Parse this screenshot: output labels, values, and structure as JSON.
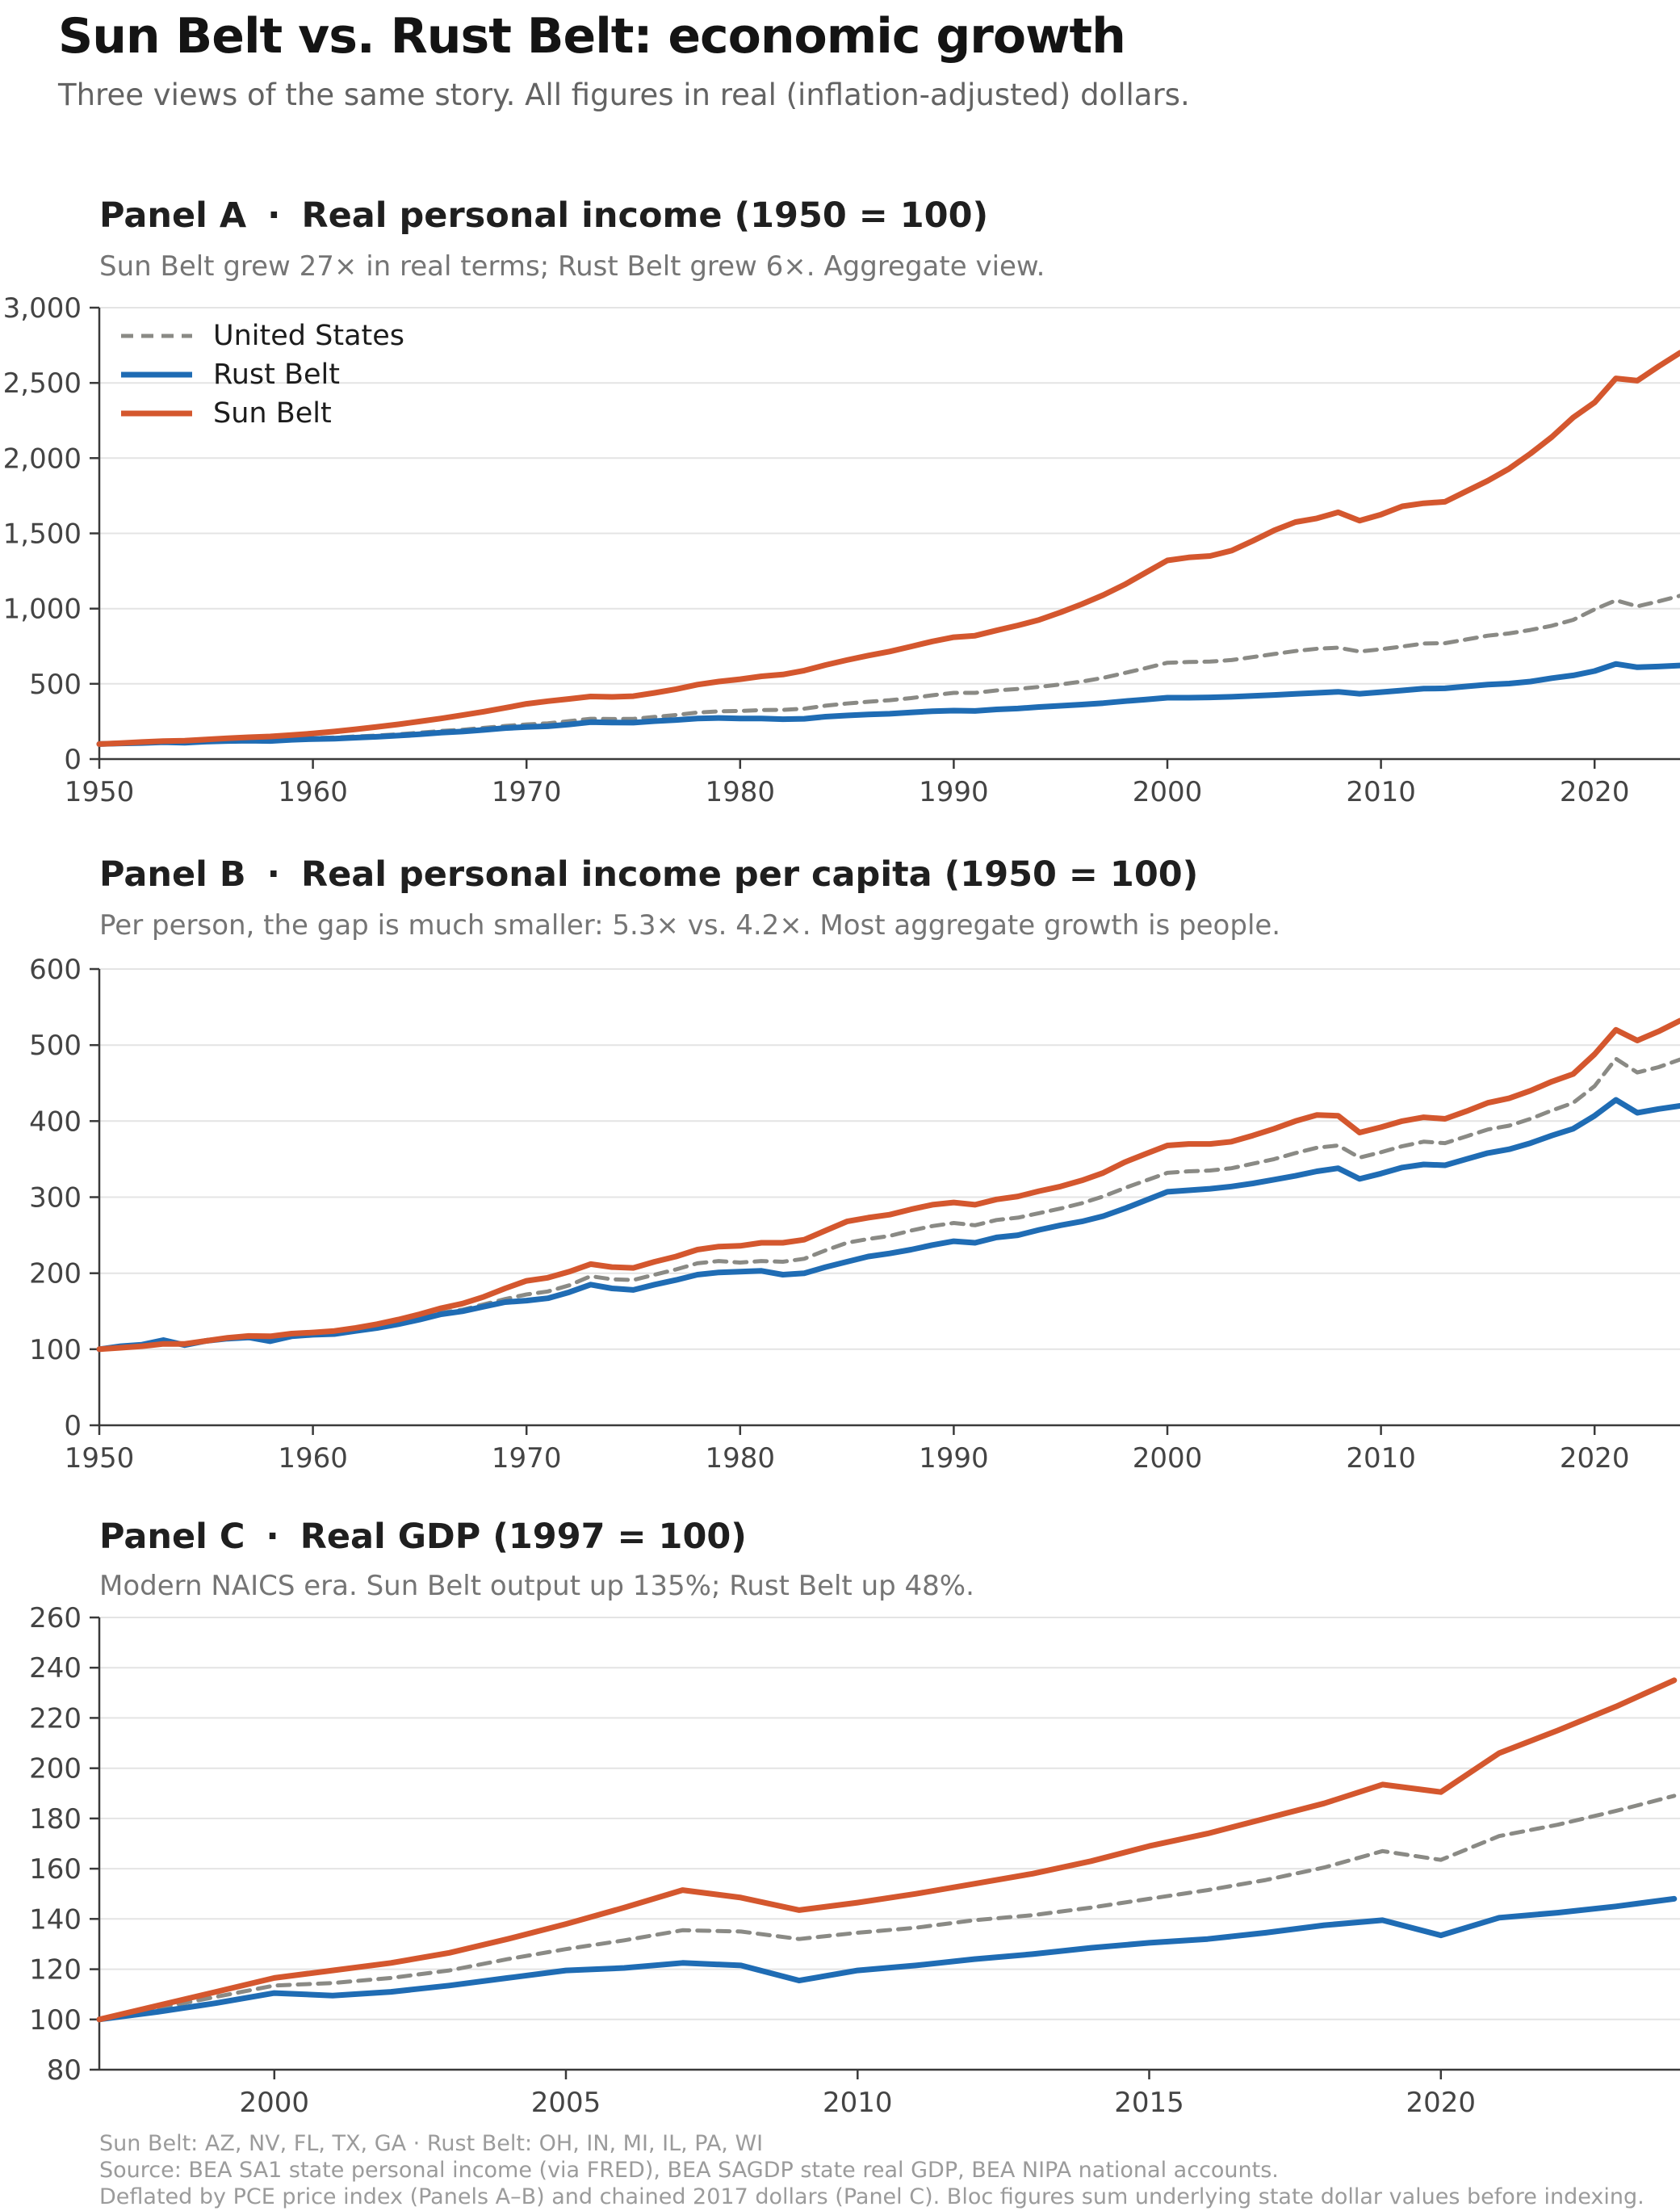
{
  "header": {
    "title": "Sun Belt vs. Rust Belt: economic growth",
    "subtitle": "Three views of the same story. All figures in real (inflation-adjusted) dollars."
  },
  "colors": {
    "sun": "#d4572e",
    "rust": "#1f6cb4",
    "us": "#8a8a85",
    "grid": "#e4e4e4",
    "spine": "#3a3a3a",
    "tick_label": "#444444",
    "title": "#141414",
    "subtitle": "#636363",
    "panel_subtitle": "#757575",
    "footer": "#9b9b9b"
  },
  "legend": {
    "items": [
      "United States",
      "Rust Belt",
      "Sun Belt"
    ]
  },
  "footer": {
    "lines": [
      "Sun Belt: AZ, NV, FL, TX, GA  ·  Rust Belt: OH, IN, MI, IL, PA, WI",
      "Source: BEA SA1 state personal income (via FRED), BEA SAGDP state real GDP, BEA NIPA national accounts.",
      "Deflated by PCE price index (Panels A–B) and chained 2017 dollars (Panel C). Bloc figures sum underlying state dollar values before indexing."
    ]
  },
  "chart_data": [
    {
      "id": "a",
      "type": "line",
      "title_prefix": "Panel A",
      "separator": "·",
      "title": "Real personal income (1950 = 100)",
      "subtitle": "Sun Belt grew 27× in real terms; Rust Belt grew 6×. Aggregate view.",
      "x_start": 1950,
      "x_end": 2024,
      "xlim": [
        1950,
        2024
      ],
      "ylim": [
        0,
        3000
      ],
      "grid": true,
      "legend_position": "upper-left",
      "xticks": [
        {
          "v": 1950,
          "label": "1950"
        },
        {
          "v": 1960,
          "label": "1960"
        },
        {
          "v": 1970,
          "label": "1970"
        },
        {
          "v": 1980,
          "label": "1980"
        },
        {
          "v": 1990,
          "label": "1990"
        },
        {
          "v": 2000,
          "label": "2000"
        },
        {
          "v": 2010,
          "label": "2010"
        },
        {
          "v": 2020,
          "label": "2020"
        }
      ],
      "yticks": [
        {
          "v": 0,
          "label": "0"
        },
        {
          "v": 500,
          "label": "500"
        },
        {
          "v": 1000,
          "label": "1,000"
        },
        {
          "v": 1500,
          "label": "1,500"
        },
        {
          "v": 2000,
          "label": "2,000"
        },
        {
          "v": 2500,
          "label": "2,500"
        },
        {
          "v": 3000,
          "label": "3,000"
        }
      ],
      "series": [
        {
          "name": "United States",
          "key": "us",
          "color_ref": "us",
          "dash": true,
          "width": 5,
          "values": [
            100,
            104,
            108,
            113,
            112,
            119,
            123,
            126,
            125,
            133,
            140,
            143,
            150,
            156,
            165,
            175,
            187,
            195,
            207,
            220,
            230,
            238,
            252,
            268,
            266,
            267,
            280,
            293,
            309,
            317,
            320,
            326,
            327,
            335,
            355,
            369,
            381,
            391,
            405,
            424,
            440,
            440,
            456,
            466,
            480,
            496,
            515,
            540,
            572,
            605,
            640,
            645,
            648,
            658,
            678,
            698,
            718,
            733,
            740,
            715,
            730,
            748,
            768,
            770,
            795,
            820,
            835,
            858,
            886,
            925,
            995,
            1055,
            1015,
            1048,
            1085
          ]
        },
        {
          "name": "Rust Belt",
          "key": "rust",
          "color_ref": "rust",
          "dash": false,
          "width": 7,
          "values": [
            100,
            104,
            107,
            112,
            109,
            116,
            120,
            122,
            120,
            128,
            133,
            136,
            142,
            148,
            156,
            165,
            176,
            183,
            194,
            206,
            213,
            218,
            230,
            245,
            243,
            242,
            252,
            260,
            270,
            273,
            270,
            270,
            265,
            268,
            282,
            290,
            296,
            301,
            310,
            318,
            322,
            320,
            330,
            336,
            346,
            354,
            362,
            372,
            385,
            396,
            408,
            408,
            410,
            414,
            420,
            426,
            433,
            440,
            447,
            434,
            445,
            456,
            468,
            470,
            483,
            495,
            502,
            515,
            538,
            556,
            585,
            632,
            610,
            615,
            622
          ]
        },
        {
          "name": "Sun Belt",
          "key": "sun",
          "color_ref": "sun",
          "dash": false,
          "width": 7,
          "values": [
            100,
            106,
            113,
            119,
            122,
            130,
            138,
            145,
            150,
            160,
            170,
            183,
            198,
            214,
            231,
            250,
            270,
            292,
            315,
            340,
            367,
            385,
            400,
            416,
            413,
            418,
            440,
            465,
            495,
            515,
            531,
            550,
            562,
            588,
            625,
            658,
            688,
            715,
            748,
            782,
            810,
            820,
            855,
            888,
            925,
            975,
            1030,
            1090,
            1160,
            1240,
            1320,
            1340,
            1350,
            1385,
            1450,
            1520,
            1575,
            1600,
            1640,
            1585,
            1625,
            1680,
            1700,
            1710,
            1780,
            1850,
            1930,
            2030,
            2140,
            2270,
            2370,
            2530,
            2515,
            2610,
            2700
          ]
        }
      ]
    },
    {
      "id": "b",
      "type": "line",
      "title_prefix": "Panel B",
      "separator": "·",
      "title": "Real personal income per capita (1950 = 100)",
      "subtitle": "Per person, the gap is much smaller: 5.3× vs. 4.2×. Most aggregate growth is people.",
      "x_start": 1950,
      "x_end": 2024,
      "xlim": [
        1950,
        2024
      ],
      "ylim": [
        0,
        600
      ],
      "grid": true,
      "xticks": [
        {
          "v": 1950,
          "label": "1950"
        },
        {
          "v": 1960,
          "label": "1960"
        },
        {
          "v": 1970,
          "label": "1970"
        },
        {
          "v": 1980,
          "label": "1980"
        },
        {
          "v": 1990,
          "label": "1990"
        },
        {
          "v": 2000,
          "label": "2000"
        },
        {
          "v": 2010,
          "label": "2010"
        },
        {
          "v": 2020,
          "label": "2020"
        }
      ],
      "yticks": [
        {
          "v": 0,
          "label": "0"
        },
        {
          "v": 100,
          "label": "100"
        },
        {
          "v": 200,
          "label": "200"
        },
        {
          "v": 300,
          "label": "300"
        },
        {
          "v": 400,
          "label": "400"
        },
        {
          "v": 500,
          "label": "500"
        },
        {
          "v": 600,
          "label": "600"
        }
      ],
      "series": [
        {
          "name": "United States",
          "key": "us",
          "color_ref": "us",
          "dash": true,
          "width": 5,
          "values": [
            100,
            103,
            105,
            109,
            107.5,
            112,
            114.5,
            116,
            114.5,
            119,
            120,
            121,
            125,
            129,
            135,
            141,
            148,
            152,
            159,
            166,
            172,
            176,
            184,
            196,
            192,
            191,
            198,
            205,
            213,
            216,
            214,
            216,
            215,
            219,
            230,
            240,
            245,
            249,
            256,
            262,
            266,
            263,
            270,
            273,
            279,
            285,
            292,
            301,
            312,
            322,
            332,
            334,
            335,
            338,
            344,
            350,
            358,
            365,
            368,
            352,
            359,
            367,
            373,
            371,
            380,
            389,
            394,
            403,
            414,
            424,
            446,
            482,
            464,
            471,
            481
          ]
        },
        {
          "name": "Rust Belt",
          "key": "rust",
          "color_ref": "rust",
          "dash": false,
          "width": 7,
          "values": [
            100,
            104,
            106,
            112,
            105.5,
            111,
            114,
            115.5,
            110.5,
            117,
            119,
            120,
            124,
            128,
            133,
            139,
            146,
            150,
            156,
            162,
            164,
            167,
            175,
            185,
            180,
            178,
            185,
            191,
            198,
            201,
            202,
            203,
            198,
            200,
            208,
            215,
            222,
            226,
            231,
            237,
            242,
            240,
            247,
            250,
            257,
            263,
            268,
            275,
            285,
            296,
            307,
            309,
            311,
            314,
            318,
            323,
            328,
            334,
            338,
            324,
            331,
            339,
            343,
            342,
            350,
            358,
            363,
            371,
            381,
            390,
            407,
            428,
            411,
            416,
            420
          ]
        },
        {
          "name": "Sun Belt",
          "key": "sun",
          "color_ref": "sun",
          "dash": false,
          "width": 7,
          "values": [
            100,
            102,
            104,
            107,
            107,
            111,
            115,
            117.5,
            117,
            120.5,
            122,
            124,
            128,
            133,
            139,
            146,
            154,
            160,
            169,
            180,
            190,
            194,
            202,
            212,
            208,
            207,
            215,
            222,
            231,
            235,
            236,
            240,
            240,
            244,
            256,
            268,
            273,
            277,
            284,
            290,
            293,
            290,
            297,
            301,
            308,
            314,
            322,
            332,
            346,
            357,
            368,
            370,
            370,
            373,
            381,
            390,
            400,
            408,
            407,
            385,
            392,
            400,
            405,
            403,
            413,
            424,
            430,
            440,
            452,
            462,
            488,
            520,
            506,
            518,
            532
          ]
        }
      ]
    },
    {
      "id": "c",
      "type": "line",
      "title_prefix": "Panel C",
      "separator": "·",
      "title": "Real GDP (1997 = 100)",
      "subtitle": "Modern NAICS era. Sun Belt output up 135%; Rust Belt up 48%.",
      "x_start": 1997,
      "x_end": 2024,
      "xlim": [
        1997,
        2024.1
      ],
      "ylim": [
        80,
        260
      ],
      "grid": true,
      "xticks": [
        {
          "v": 2000,
          "label": "2000"
        },
        {
          "v": 2005,
          "label": "2005"
        },
        {
          "v": 2010,
          "label": "2010"
        },
        {
          "v": 2015,
          "label": "2015"
        },
        {
          "v": 2020,
          "label": "2020"
        }
      ],
      "yticks": [
        {
          "v": 80,
          "label": "80"
        },
        {
          "v": 100,
          "label": "100"
        },
        {
          "v": 120,
          "label": "120"
        },
        {
          "v": 140,
          "label": "140"
        },
        {
          "v": 160,
          "label": "160"
        },
        {
          "v": 180,
          "label": "180"
        },
        {
          "v": 200,
          "label": "200"
        },
        {
          "v": 220,
          "label": "220"
        },
        {
          "v": 240,
          "label": "240"
        },
        {
          "v": 260,
          "label": "260"
        }
      ],
      "series": [
        {
          "name": "United States",
          "key": "us",
          "color_ref": "us",
          "dash": true,
          "width": 5,
          "values": [
            100,
            104.5,
            109,
            113.5,
            114.5,
            116.5,
            119.5,
            124,
            128,
            131.5,
            135.5,
            135,
            132,
            134.5,
            136.5,
            139.5,
            141.5,
            144.5,
            148,
            151.5,
            155.5,
            160.5,
            167,
            163.5,
            173,
            177.5,
            183,
            189
          ]
        },
        {
          "name": "Rust Belt",
          "key": "rust",
          "color_ref": "rust",
          "dash": false,
          "width": 7,
          "values": [
            100,
            103,
            106.5,
            110.5,
            109.5,
            111,
            113.5,
            116.5,
            119.5,
            120.5,
            122.5,
            121.5,
            115.5,
            119.5,
            121.5,
            124,
            126,
            128.5,
            130.5,
            132,
            134.5,
            137.5,
            139.5,
            133.5,
            140.5,
            142.5,
            145,
            148
          ]
        },
        {
          "name": "Sun Belt",
          "key": "sun",
          "color_ref": "sun",
          "dash": false,
          "width": 7,
          "values": [
            100,
            105.5,
            111,
            116.5,
            119.5,
            122.5,
            126.5,
            132,
            138,
            144.5,
            151.5,
            148.5,
            143.5,
            146.5,
            150,
            154,
            158,
            163,
            169,
            174,
            180,
            186,
            193.5,
            190.5,
            206,
            215,
            224.5,
            235
          ]
        }
      ]
    }
  ]
}
